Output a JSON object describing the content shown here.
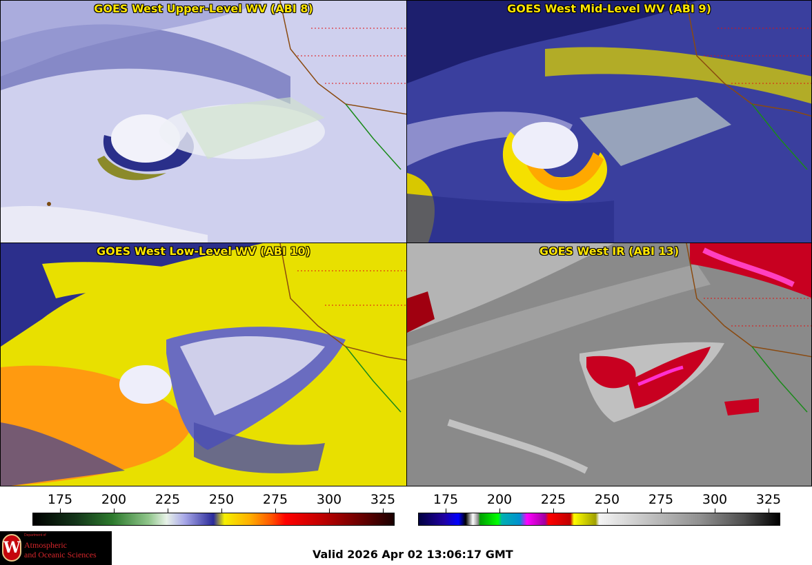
{
  "panels": [
    {
      "title": "GOES West Upper-Level WV (ABI 8)"
    },
    {
      "title": "GOES West Mid-Level WV (ABI 9)"
    },
    {
      "title": "GOES West Low-Level WV (ABI 10)"
    },
    {
      "title": "GOES West IR (ABI 13)"
    }
  ],
  "colorbars": {
    "wv": {
      "ticks": [
        "175",
        "200",
        "225",
        "250",
        "275",
        "300",
        "325"
      ]
    },
    "ir": {
      "ticks": [
        "175",
        "200",
        "225",
        "250",
        "275",
        "300",
        "325"
      ]
    }
  },
  "logo": {
    "dept": "Department of",
    "line1": "Atmospheric",
    "line2": "and Oceanic Sciences",
    "seal": "W"
  },
  "valid_time": "Valid 2026 Apr 02 13:06:17 GMT"
}
